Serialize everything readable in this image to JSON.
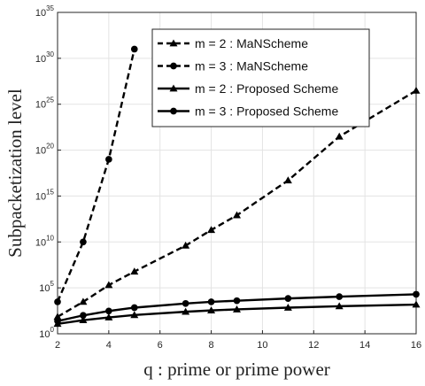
{
  "chart_data": {
    "type": "line",
    "title": "",
    "xlabel": "q : prime or prime power",
    "ylabel": "Subpacketization level",
    "x_ticks": [
      2,
      4,
      6,
      8,
      10,
      12,
      14,
      16
    ],
    "xlim": [
      2,
      16
    ],
    "y_scale": "log",
    "ylim": [
      1,
      1e+35
    ],
    "y_ticks": [
      {
        "base": "10",
        "exp": "0",
        "value": 1
      },
      {
        "base": "10",
        "exp": "5",
        "value": 100000.0
      },
      {
        "base": "10",
        "exp": "10",
        "value": 10000000000.0
      },
      {
        "base": "10",
        "exp": "15",
        "value": 1000000000000000.0
      },
      {
        "base": "10",
        "exp": "20",
        "value": 1e+20
      },
      {
        "base": "10",
        "exp": "25",
        "value": 1e+25
      },
      {
        "base": "10",
        "exp": "30",
        "value": 1e+30
      },
      {
        "base": "10",
        "exp": "35",
        "value": 1e+35
      }
    ],
    "grid": true,
    "legend_position": "top-right",
    "series": [
      {
        "name": "m = 2 : MaNScheme",
        "line_style": "dashed",
        "marker": "triangle",
        "x": [
          2,
          3,
          4,
          5,
          7,
          8,
          9,
          11,
          13,
          16
        ],
        "y": [
          70,
          3000,
          200000,
          6000000,
          4000000000.0,
          200000000000.0,
          8000000000000.0,
          5e+16,
          3e+21,
          3e+26
        ]
      },
      {
        "name": "m = 3 : MaNScheme",
        "line_style": "dashed",
        "marker": "circle",
        "x": [
          2,
          3,
          4,
          5
        ],
        "y": [
          3000,
          10000000000.0,
          1e+19,
          1e+31
        ]
      },
      {
        "name": "m = 2 : Proposed Scheme",
        "line_style": "solid",
        "marker": "triangle",
        "x": [
          2,
          3,
          4,
          5,
          7,
          8,
          9,
          11,
          13,
          16
        ],
        "y": [
          12,
          30,
          60,
          110,
          250,
          350,
          450,
          700,
          1000,
          1500
        ]
      },
      {
        "name": "m = 3 : Proposed Scheme",
        "line_style": "solid",
        "marker": "circle",
        "x": [
          2,
          3,
          4,
          5,
          7,
          8,
          9,
          11,
          13,
          16
        ],
        "y": [
          24,
          100,
          300,
          700,
          2000,
          3000,
          4000,
          7000,
          11000,
          20000
        ]
      }
    ]
  }
}
